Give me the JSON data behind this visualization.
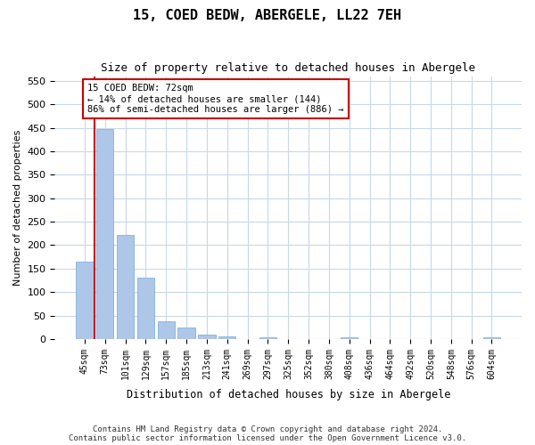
{
  "title": "15, COED BEDW, ABERGELE, LL22 7EH",
  "subtitle": "Size of property relative to detached houses in Abergele",
  "xlabel": "Distribution of detached houses by size in Abergele",
  "ylabel": "Number of detached properties",
  "footer_line1": "Contains HM Land Registry data © Crown copyright and database right 2024.",
  "footer_line2": "Contains public sector information licensed under the Open Government Licence v3.0.",
  "annotation_line1": "15 COED BEDW: 72sqm",
  "annotation_line2": "← 14% of detached houses are smaller (144)",
  "annotation_line3": "86% of semi-detached houses are larger (886) →",
  "bar_color": "#aec6e8",
  "bar_edge_color": "#6fa8d4",
  "marker_line_color": "#cc0000",
  "annotation_box_color": "#cc0000",
  "background_color": "#ffffff",
  "grid_color": "#c8d8e8",
  "categories": [
    "45sqm",
    "73sqm",
    "101sqm",
    "129sqm",
    "157sqm",
    "185sqm",
    "213sqm",
    "241sqm",
    "269sqm",
    "297sqm",
    "325sqm",
    "352sqm",
    "380sqm",
    "408sqm",
    "436sqm",
    "464sqm",
    "492sqm",
    "520sqm",
    "548sqm",
    "576sqm",
    "604sqm"
  ],
  "values": [
    165,
    447,
    222,
    130,
    37,
    25,
    10,
    5,
    0,
    4,
    0,
    0,
    0,
    4,
    0,
    0,
    0,
    0,
    0,
    0,
    4
  ],
  "ylim": [
    0,
    560
  ],
  "yticks": [
    0,
    50,
    100,
    150,
    200,
    250,
    300,
    350,
    400,
    450,
    500,
    550
  ],
  "figsize": [
    6.0,
    5.0
  ],
  "dpi": 100
}
